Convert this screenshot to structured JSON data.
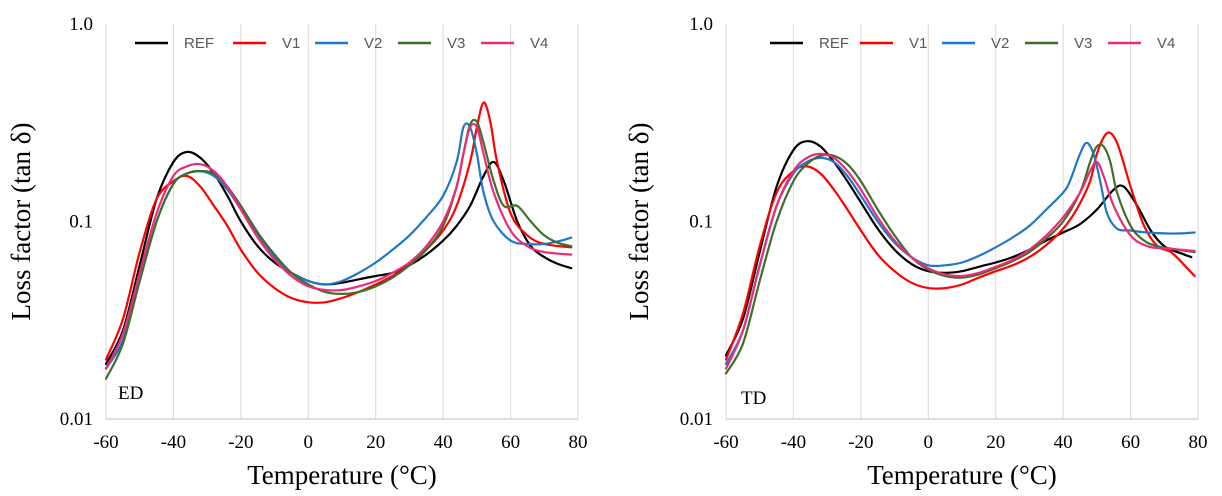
{
  "chart_data": [
    {
      "type": "line",
      "panel_label": "ED",
      "xlabel": "Temperature (°C)",
      "ylabel": "Loss factor (tan δ)",
      "xlim": [
        -60,
        80
      ],
      "ylim": [
        0.01,
        1.0
      ],
      "yscale": "log",
      "xticks": [
        "-60",
        "-40",
        "-20",
        "0",
        "20",
        "40",
        "60",
        "80"
      ],
      "yticks": [
        "0.01",
        "0.1",
        "1.0"
      ],
      "grid": "vertical",
      "legend": "top",
      "series": [
        {
          "name": "REF",
          "color": "#000000",
          "x": [
            -60,
            -55,
            -50,
            -45,
            -40,
            -36,
            -32,
            -28,
            -24,
            -20,
            -15,
            -10,
            -5,
            0,
            5,
            10,
            15,
            20,
            25,
            30,
            35,
            40,
            44,
            48,
            52,
            55,
            58,
            62,
            66,
            70,
            74,
            78
          ],
          "y": [
            0.019,
            0.028,
            0.06,
            0.13,
            0.2,
            0.225,
            0.21,
            0.175,
            0.135,
            0.1,
            0.075,
            0.062,
            0.055,
            0.05,
            0.048,
            0.049,
            0.051,
            0.053,
            0.055,
            0.06,
            0.068,
            0.08,
            0.095,
            0.12,
            0.17,
            0.2,
            0.16,
            0.1,
            0.075,
            0.066,
            0.061,
            0.058
          ]
        },
        {
          "name": "V1",
          "color": "#ff0000",
          "x": [
            -60,
            -55,
            -50,
            -45,
            -40,
            -36,
            -32,
            -28,
            -24,
            -20,
            -15,
            -10,
            -5,
            0,
            5,
            10,
            15,
            20,
            25,
            30,
            35,
            40,
            44,
            48,
            50,
            52,
            54,
            56,
            60,
            65,
            70,
            78
          ],
          "y": [
            0.02,
            0.032,
            0.07,
            0.13,
            0.16,
            0.17,
            0.15,
            0.12,
            0.095,
            0.072,
            0.055,
            0.046,
            0.041,
            0.039,
            0.039,
            0.041,
            0.044,
            0.048,
            0.053,
            0.06,
            0.072,
            0.09,
            0.12,
            0.2,
            0.3,
            0.4,
            0.32,
            0.2,
            0.11,
            0.085,
            0.077,
            0.074
          ]
        },
        {
          "name": "V2",
          "color": "#1f77c8",
          "x": [
            -60,
            -55,
            -50,
            -45,
            -40,
            -36,
            -32,
            -28,
            -24,
            -20,
            -15,
            -10,
            -5,
            0,
            5,
            10,
            15,
            20,
            25,
            30,
            35,
            40,
            44,
            46,
            48,
            50,
            52,
            55,
            60,
            65,
            70,
            75,
            78
          ],
          "y": [
            0.018,
            0.025,
            0.05,
            0.1,
            0.155,
            0.175,
            0.18,
            0.17,
            0.145,
            0.115,
            0.085,
            0.066,
            0.055,
            0.05,
            0.048,
            0.05,
            0.055,
            0.062,
            0.072,
            0.085,
            0.105,
            0.135,
            0.2,
            0.3,
            0.3,
            0.22,
            0.14,
            0.1,
            0.08,
            0.077,
            0.077,
            0.08,
            0.083
          ]
        },
        {
          "name": "V3",
          "color": "#3f6f2a",
          "x": [
            -60,
            -55,
            -50,
            -45,
            -40,
            -36,
            -32,
            -28,
            -24,
            -20,
            -15,
            -10,
            -5,
            0,
            5,
            10,
            15,
            20,
            25,
            30,
            35,
            40,
            44,
            46,
            48,
            50,
            52,
            55,
            58,
            62,
            66,
            70,
            74,
            78
          ],
          "y": [
            0.016,
            0.024,
            0.05,
            0.1,
            0.155,
            0.175,
            0.18,
            0.175,
            0.15,
            0.12,
            0.088,
            0.068,
            0.055,
            0.048,
            0.044,
            0.043,
            0.044,
            0.047,
            0.052,
            0.06,
            0.072,
            0.095,
            0.15,
            0.22,
            0.31,
            0.32,
            0.25,
            0.16,
            0.12,
            0.12,
            0.1,
            0.085,
            0.078,
            0.075
          ]
        },
        {
          "name": "V4",
          "color": "#ee2a7b",
          "x": [
            -60,
            -55,
            -50,
            -45,
            -40,
            -36,
            -32,
            -28,
            -24,
            -20,
            -15,
            -10,
            -5,
            0,
            5,
            10,
            15,
            20,
            25,
            30,
            35,
            40,
            44,
            46,
            48,
            50,
            52,
            55,
            60,
            65,
            70,
            78
          ],
          "y": [
            0.018,
            0.027,
            0.055,
            0.11,
            0.17,
            0.19,
            0.195,
            0.18,
            0.15,
            0.115,
            0.083,
            0.064,
            0.053,
            0.047,
            0.045,
            0.045,
            0.047,
            0.05,
            0.055,
            0.062,
            0.075,
            0.1,
            0.15,
            0.22,
            0.3,
            0.3,
            0.22,
            0.14,
            0.09,
            0.075,
            0.07,
            0.068
          ]
        }
      ]
    },
    {
      "type": "line",
      "panel_label": "TD",
      "xlabel": "Temperature (°C)",
      "ylabel": "Loss factor (tan δ)",
      "xlim": [
        -60,
        80
      ],
      "ylim": [
        0.01,
        1.0
      ],
      "yscale": "log",
      "xticks": [
        "-60",
        "-40",
        "-20",
        "0",
        "20",
        "40",
        "60",
        "80"
      ],
      "yticks": [
        "0.01",
        "0.1",
        "1.0"
      ],
      "grid": "vertical",
      "legend": "top",
      "series": [
        {
          "name": "REF",
          "color": "#000000",
          "x": [
            -60,
            -55,
            -50,
            -45,
            -40,
            -36,
            -32,
            -28,
            -24,
            -20,
            -15,
            -10,
            -5,
            0,
            5,
            10,
            15,
            20,
            25,
            30,
            35,
            40,
            45,
            50,
            55,
            58,
            62,
            66,
            70,
            75,
            78
          ],
          "y": [
            0.021,
            0.032,
            0.07,
            0.15,
            0.23,
            0.255,
            0.24,
            0.2,
            0.16,
            0.125,
            0.092,
            0.072,
            0.061,
            0.056,
            0.055,
            0.056,
            0.059,
            0.062,
            0.066,
            0.072,
            0.08,
            0.088,
            0.097,
            0.115,
            0.145,
            0.15,
            0.12,
            0.09,
            0.075,
            0.069,
            0.066
          ]
        },
        {
          "name": "V1",
          "color": "#ff0000",
          "x": [
            -60,
            -55,
            -50,
            -45,
            -40,
            -36,
            -32,
            -28,
            -24,
            -20,
            -15,
            -10,
            -5,
            0,
            5,
            10,
            15,
            20,
            25,
            30,
            35,
            40,
            44,
            48,
            50,
            53,
            56,
            60,
            64,
            68,
            72,
            76,
            79
          ],
          "y": [
            0.02,
            0.034,
            0.075,
            0.14,
            0.18,
            0.19,
            0.175,
            0.145,
            0.115,
            0.09,
            0.068,
            0.056,
            0.049,
            0.046,
            0.046,
            0.048,
            0.052,
            0.056,
            0.06,
            0.066,
            0.076,
            0.092,
            0.115,
            0.16,
            0.22,
            0.28,
            0.25,
            0.15,
            0.095,
            0.075,
            0.07,
            0.06,
            0.053
          ]
        },
        {
          "name": "V2",
          "color": "#1f77c8",
          "x": [
            -60,
            -55,
            -50,
            -45,
            -40,
            -36,
            -32,
            -28,
            -24,
            -20,
            -15,
            -10,
            -5,
            0,
            5,
            10,
            15,
            20,
            25,
            30,
            35,
            40,
            42,
            45,
            47,
            49,
            51,
            53,
            56,
            60,
            65,
            70,
            75,
            79
          ],
          "y": [
            0.019,
            0.028,
            0.06,
            0.12,
            0.175,
            0.2,
            0.21,
            0.2,
            0.17,
            0.135,
            0.1,
            0.078,
            0.066,
            0.06,
            0.06,
            0.062,
            0.067,
            0.074,
            0.083,
            0.095,
            0.115,
            0.14,
            0.16,
            0.22,
            0.25,
            0.22,
            0.16,
            0.11,
            0.092,
            0.09,
            0.088,
            0.087,
            0.087,
            0.088
          ]
        },
        {
          "name": "V3",
          "color": "#3f6f2a",
          "x": [
            -60,
            -55,
            -50,
            -45,
            -40,
            -36,
            -32,
            -28,
            -24,
            -20,
            -15,
            -10,
            -5,
            0,
            5,
            10,
            15,
            20,
            25,
            30,
            35,
            40,
            45,
            48,
            50,
            52,
            54,
            56,
            60,
            64,
            68,
            74,
            79
          ],
          "y": [
            0.017,
            0.024,
            0.05,
            0.1,
            0.16,
            0.195,
            0.215,
            0.215,
            0.195,
            0.16,
            0.115,
            0.085,
            0.066,
            0.057,
            0.053,
            0.052,
            0.054,
            0.058,
            0.063,
            0.07,
            0.082,
            0.1,
            0.14,
            0.2,
            0.24,
            0.24,
            0.2,
            0.14,
            0.095,
            0.08,
            0.075,
            0.072,
            0.07
          ]
        },
        {
          "name": "V4",
          "color": "#ee2a7b",
          "x": [
            -60,
            -55,
            -50,
            -45,
            -40,
            -36,
            -32,
            -28,
            -24,
            -20,
            -15,
            -10,
            -5,
            0,
            5,
            10,
            15,
            20,
            25,
            30,
            35,
            40,
            45,
            48,
            50,
            52,
            55,
            60,
            65,
            70,
            75,
            79
          ],
          "y": [
            0.018,
            0.028,
            0.06,
            0.12,
            0.18,
            0.21,
            0.22,
            0.21,
            0.18,
            0.145,
            0.105,
            0.08,
            0.066,
            0.058,
            0.054,
            0.053,
            0.055,
            0.059,
            0.064,
            0.072,
            0.085,
            0.105,
            0.14,
            0.18,
            0.2,
            0.17,
            0.12,
            0.085,
            0.075,
            0.073,
            0.072,
            0.071
          ]
        }
      ]
    }
  ]
}
